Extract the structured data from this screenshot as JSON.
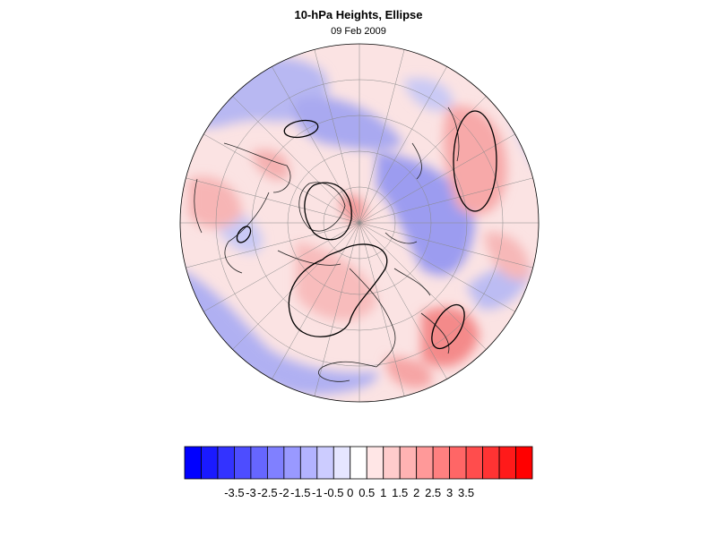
{
  "header": {
    "title": "10-hPa Heights, Ellipse",
    "date": "09 Feb 2009"
  },
  "map": {
    "projection": "polar-stereographic-north",
    "field": "height anomaly",
    "contour_overlay": "ellipse"
  },
  "colorbar": {
    "colors": [
      "#0000ff",
      "#1a1aff",
      "#3333ff",
      "#4d4dff",
      "#6666ff",
      "#8080ff",
      "#9999ff",
      "#b3b3ff",
      "#ccccff",
      "#e6e6ff",
      "#ffffff",
      "#ffe6e6",
      "#ffcccc",
      "#ffb3b3",
      "#ff9999",
      "#ff8080",
      "#ff6666",
      "#ff4d4d",
      "#ff3333",
      "#ff1a1a",
      "#ff0000"
    ],
    "tick_labels": [
      "-3.5",
      "-3",
      "-2.5",
      "-2",
      "-1.5",
      "-1",
      "-0.5",
      "0",
      "0.5",
      "1",
      "1.5",
      "2",
      "2.5",
      "3",
      "3.5"
    ]
  }
}
